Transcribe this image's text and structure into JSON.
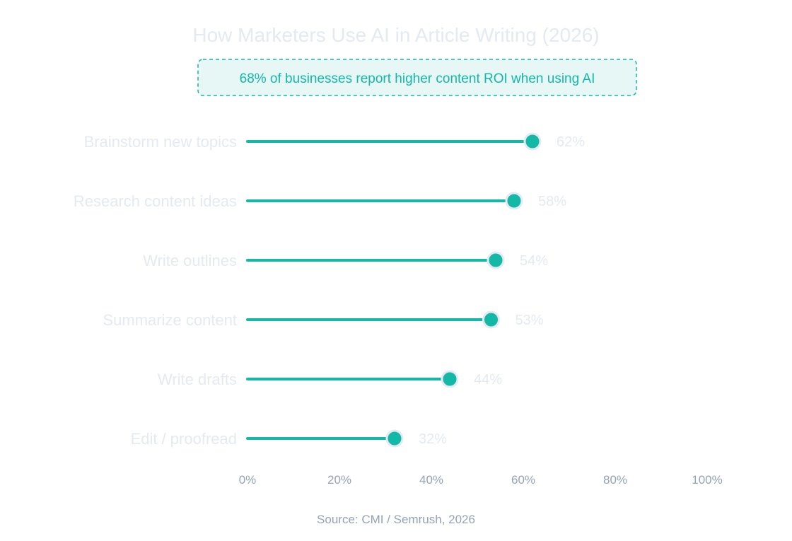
{
  "chart_data": {
    "type": "lollipop",
    "title": "How Marketers Use AI in Article Writing (2026)",
    "annotation": "68% of businesses report higher content ROI when using AI",
    "categories": [
      "Brainstorm new topics",
      "Research content ideas",
      "Write outlines",
      "Summarize content",
      "Write drafts",
      "Edit / proofread"
    ],
    "values": [
      62,
      58,
      54,
      53,
      44,
      32
    ],
    "value_labels": [
      "62%",
      "58%",
      "54%",
      "53%",
      "44%",
      "32%"
    ],
    "xlim": [
      0,
      100
    ],
    "x_ticks": [
      0,
      20,
      40,
      60,
      80,
      100
    ],
    "x_tick_labels": [
      "0%",
      "20%",
      "40%",
      "60%",
      "80%",
      "100%"
    ],
    "xlabel": "",
    "ylabel": "",
    "grid": false,
    "legend": "none",
    "source": "Source: CMI / Semrush, 2026",
    "colors": {
      "accent": "#14b8a6",
      "callout_fill": "#e6f7f5",
      "marker_outline": "#e4e9f2",
      "faint_text": "#e4e9f2",
      "axis_text": "#94a3b8"
    }
  }
}
